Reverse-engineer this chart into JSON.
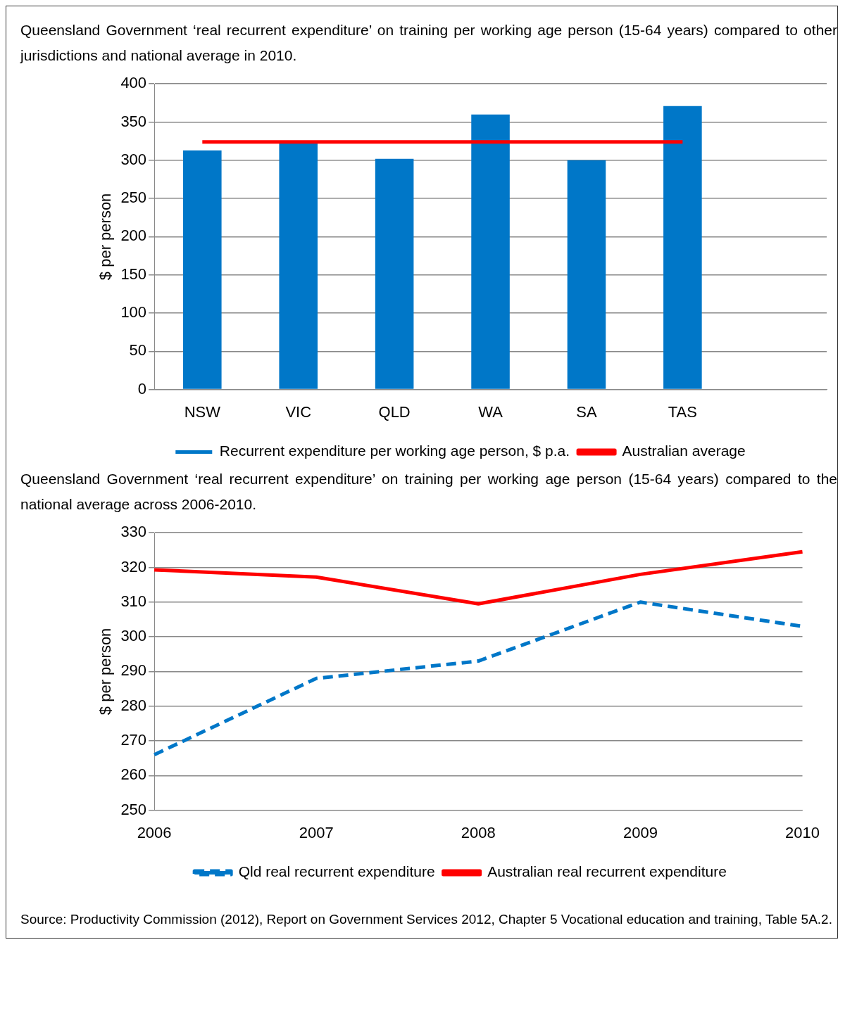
{
  "chart_data": [
    {
      "type": "bar",
      "title": "Queensland Government ‘real recurrent expenditure’ on training per working age person (15-64 years) compared to other jurisdictions and national average in 2010.",
      "ylabel": "$ per person",
      "categories": [
        "NSW",
        "VIC",
        "QLD",
        "WA",
        "SA",
        "TAS",
        null
      ],
      "series": [
        {
          "type": "bar",
          "name": "Recurrent expenditure per working age person, $ p.a.",
          "color": "#0077c8",
          "values": [
            313,
            323,
            302,
            360,
            300,
            371,
            null
          ]
        },
        {
          "type": "line",
          "name": "Australian average",
          "color": "#ff0000",
          "line_style": "solid",
          "values": [
            324,
            324,
            324,
            324,
            324,
            324,
            null
          ]
        }
      ],
      "ylim": [
        0,
        400
      ],
      "yticks": [
        0,
        50,
        100,
        150,
        200,
        250,
        300,
        350,
        400
      ],
      "grid": "y",
      "legend": "bottom",
      "marker": "none"
    },
    {
      "type": "line",
      "title": "Queensland Government ‘real recurrent expenditure’ on training per working age person (15-64 years) compared to the national average across 2006-2010.",
      "ylabel": "$ per person",
      "categories": [
        "2006",
        "2007",
        "2008",
        "2009",
        "2010"
      ],
      "series": [
        {
          "name": "Qld real recurrent expenditure",
          "color": "#0077c8",
          "line_style": "dashed",
          "values": [
            266,
            288,
            293,
            310,
            303
          ]
        },
        {
          "name": "Australian real recurrent expenditure",
          "color": "#ff0000",
          "line_style": "solid",
          "values": [
            319.3,
            317.2,
            309.5,
            318,
            324.5
          ]
        }
      ],
      "ylim": [
        250,
        330
      ],
      "yticks": [
        250,
        260,
        270,
        280,
        290,
        300,
        310,
        320,
        330
      ],
      "grid": "y",
      "legend": "bottom",
      "marker": "none",
      "annotations": [
        "Source: Productivity Commission (2012), Report on Government Services 2012, Chapter 5 Vocational education and training, Table 5A.2."
      ]
    }
  ]
}
